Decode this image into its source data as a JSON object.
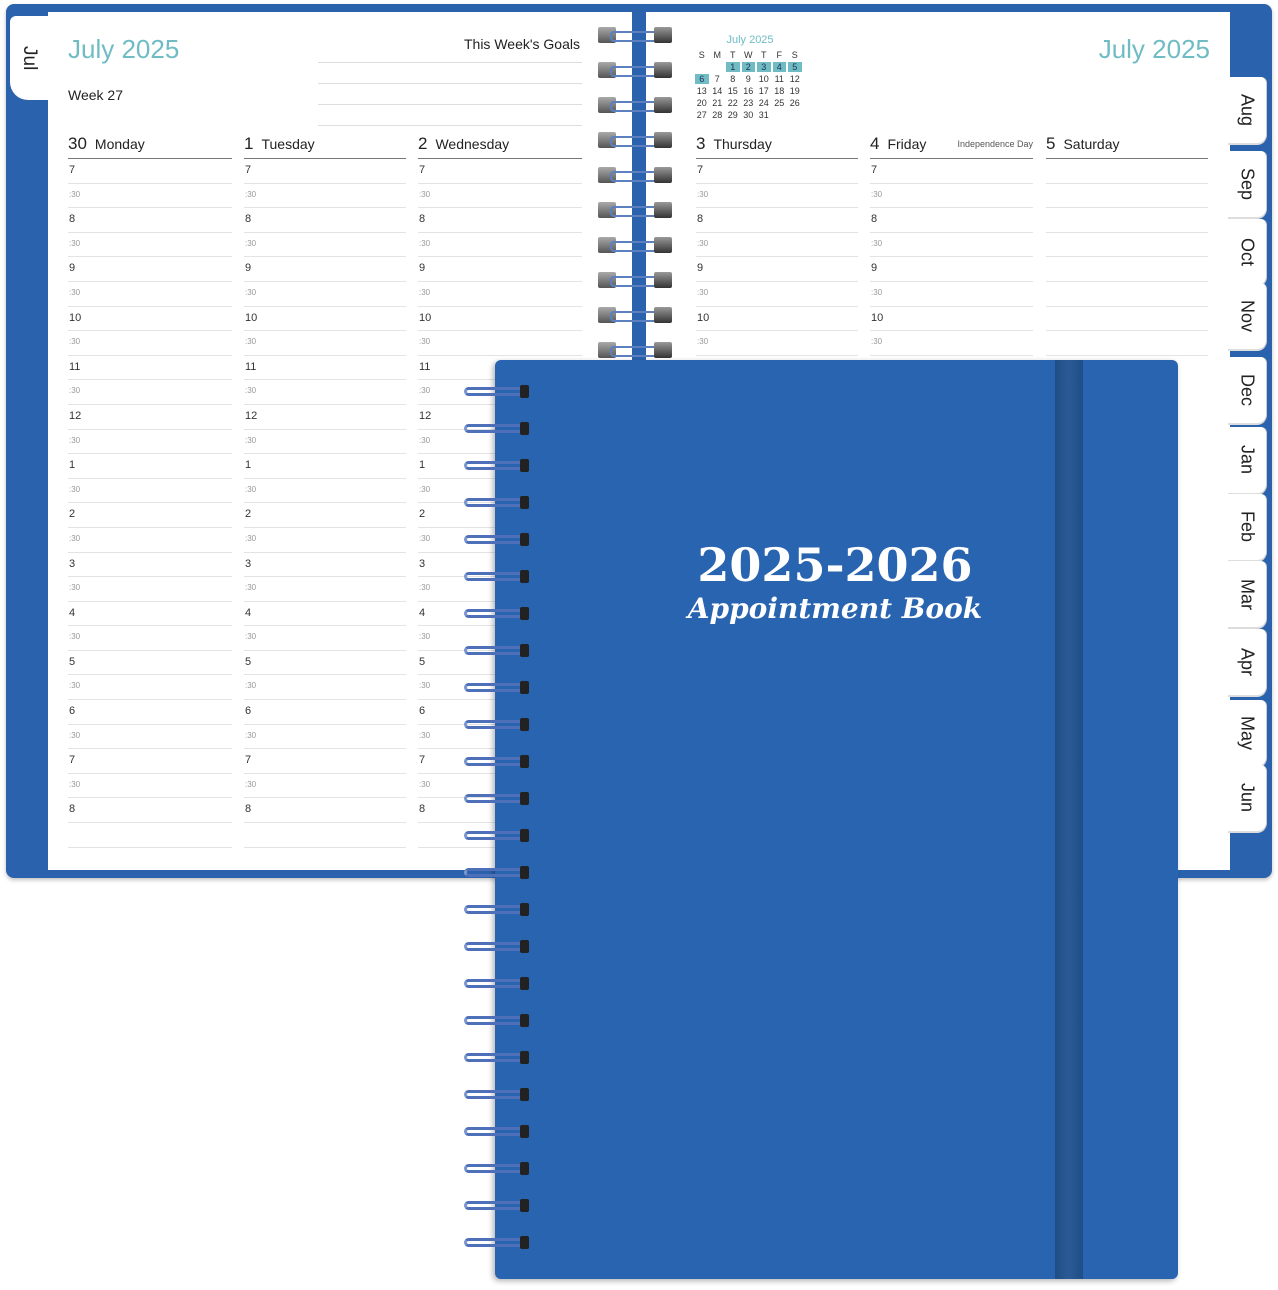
{
  "left_page": {
    "tab": "Jul",
    "title": "July 2025",
    "week": "Week 27",
    "goals_label": "This Week's Goals",
    "days": [
      {
        "num": "30",
        "name": "Monday"
      },
      {
        "num": "1",
        "name": "Tuesday"
      },
      {
        "num": "2",
        "name": "Wednesday"
      }
    ]
  },
  "right_page": {
    "title": "July 2025",
    "days": [
      {
        "num": "3",
        "name": "Thursday",
        "holiday": ""
      },
      {
        "num": "4",
        "name": "Friday",
        "holiday": "Independence Day"
      },
      {
        "num": "5",
        "name": "Saturday",
        "holiday": ""
      }
    ],
    "mini_calendar": {
      "title": "July 2025",
      "weekdays": [
        "S",
        "M",
        "T",
        "W",
        "T",
        "F",
        "S"
      ],
      "cells": [
        "",
        "",
        "1",
        "2",
        "3",
        "4",
        "5",
        "6",
        "7",
        "8",
        "9",
        "10",
        "11",
        "12",
        "13",
        "14",
        "15",
        "16",
        "17",
        "18",
        "19",
        "20",
        "21",
        "22",
        "23",
        "24",
        "25",
        "26",
        "27",
        "28",
        "29",
        "30",
        "31"
      ],
      "highlighted": [
        "1",
        "2",
        "3",
        "4",
        "5",
        "6"
      ]
    },
    "tabs": [
      "Aug",
      "Sep",
      "Oct",
      "Nov",
      "Dec",
      "Jan",
      "Feb",
      "Mar",
      "Apr",
      "May",
      "Jun"
    ]
  },
  "time_slots": [
    "7",
    ":30",
    "8",
    ":30",
    "9",
    ":30",
    "10",
    ":30",
    "11",
    ":30",
    "12",
    ":30",
    "1",
    ":30",
    "2",
    ":30",
    "3",
    ":30",
    "4",
    ":30",
    "5",
    ":30",
    "6",
    ":30",
    "7",
    ":30",
    "8",
    ""
  ],
  "cover": {
    "year": "2025-2026",
    "subtitle": "Appointment Book"
  },
  "colors": {
    "cover": "#2864b0",
    "accent": "#6fbcc4",
    "band": "#1f4d85"
  }
}
